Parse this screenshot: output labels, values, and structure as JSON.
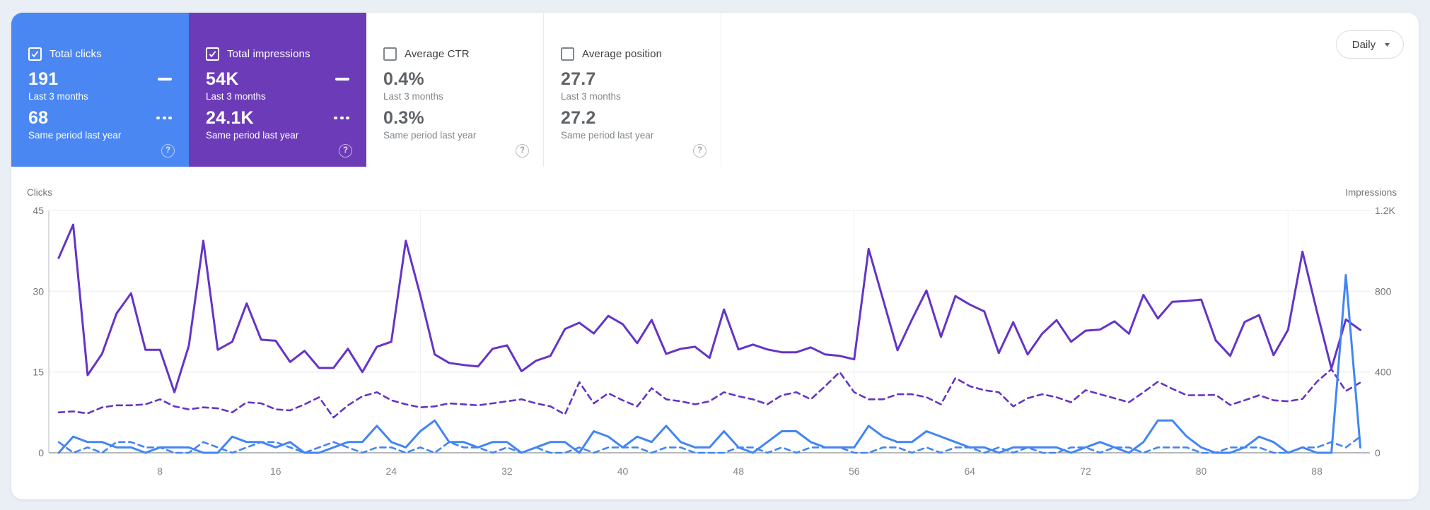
{
  "colors": {
    "page_background": "#eaeef5",
    "clicks_accent": "#4b87f2",
    "impressions_accent": "#6c3cb8",
    "clicks_line": "#4285f4",
    "impressions_line": "#6434c8"
  },
  "icons": {
    "help": "?",
    "caret": "▼"
  },
  "granularity": {
    "label": "Daily"
  },
  "cards": [
    {
      "label": "Total clicks",
      "checked": true,
      "current_value": "191",
      "current_period": "Last 3 months",
      "previous_value": "68",
      "previous_period": "Same period last year"
    },
    {
      "label": "Total impressions",
      "checked": true,
      "current_value": "54K",
      "current_period": "Last 3 months",
      "previous_value": "24.1K",
      "previous_period": "Same period last year"
    },
    {
      "label": "Average CTR",
      "checked": false,
      "current_value": "0.4%",
      "current_period": "Last 3 months",
      "previous_value": "0.3%",
      "previous_period": "Same period last year"
    },
    {
      "label": "Average position",
      "checked": false,
      "current_value": "27.7",
      "current_period": "Last 3 months",
      "previous_value": "27.2",
      "previous_period": "Same period last year"
    }
  ],
  "chart_data": {
    "type": "line",
    "x_unit": "day",
    "x_range": [
      1,
      91
    ],
    "x_ticks": [
      8,
      16,
      24,
      32,
      40,
      48,
      56,
      64,
      72,
      80,
      88
    ],
    "month_gridlines": [
      26,
      56,
      86
    ],
    "left_axis": {
      "label": "Clicks",
      "max": 45,
      "ticks": [
        {
          "label": "45",
          "value": 45
        },
        {
          "label": "30",
          "value": 30
        },
        {
          "label": "15",
          "value": 15
        },
        {
          "label": "0",
          "value": 0
        }
      ]
    },
    "right_axis": {
      "label": "Impressions",
      "max": 1200,
      "ticks": [
        {
          "label": "1.2K",
          "value": 1200
        },
        {
          "label": "800",
          "value": 800
        },
        {
          "label": "400",
          "value": 400
        },
        {
          "label": "0",
          "value": 0
        }
      ]
    },
    "series": [
      {
        "name": "Total impressions — same period last year",
        "axis": "right",
        "color": "#6434c8",
        "style": "dashed",
        "values": [
          200,
          205,
          195,
          225,
          235,
          235,
          240,
          265,
          230,
          215,
          225,
          220,
          200,
          250,
          245,
          215,
          210,
          240,
          275,
          175,
          235,
          280,
          300,
          260,
          240,
          225,
          230,
          245,
          240,
          235,
          245,
          255,
          265,
          245,
          230,
          190,
          350,
          245,
          295,
          260,
          230,
          320,
          265,
          255,
          240,
          255,
          300,
          280,
          265,
          240,
          285,
          300,
          265,
          330,
          400,
          300,
          265,
          265,
          290,
          290,
          275,
          240,
          370,
          330,
          310,
          300,
          230,
          270,
          290,
          275,
          250,
          310,
          290,
          270,
          250,
          300,
          352,
          317,
          285,
          285,
          287,
          237,
          260,
          285,
          260,
          255,
          267,
          352,
          414,
          306,
          348
        ]
      },
      {
        "name": "Total impressions — last 3 months",
        "axis": "right",
        "color": "#6434c8",
        "style": "solid",
        "values": [
          965,
          1130,
          385,
          490,
          690,
          790,
          510,
          510,
          300,
          530,
          1050,
          510,
          550,
          740,
          560,
          555,
          450,
          505,
          420,
          420,
          515,
          400,
          525,
          550,
          1050,
          780,
          487,
          445,
          435,
          428,
          515,
          532,
          404,
          456,
          480,
          613,
          644,
          591,
          678,
          637,
          543,
          658,
          490,
          515,
          525,
          470,
          710,
          512,
          536,
          512,
          498,
          498,
          522,
          487,
          480,
          463,
          1010,
          760,
          508,
          660,
          804,
          574,
          776,
          734,
          700,
          494,
          647,
          487,
          590,
          657,
          550,
          605,
          610,
          651,
          590,
          782,
          665,
          748,
          752,
          759,
          557,
          480,
          648,
          682,
          484,
          609,
          996,
          700,
          417,
          660,
          608
        ]
      },
      {
        "name": "Total clicks — same period last year",
        "axis": "left",
        "color": "#4285f4",
        "style": "dashed",
        "values": [
          2,
          0,
          1,
          0,
          2,
          2,
          1,
          1,
          0,
          0,
          2,
          1,
          0,
          1,
          2,
          2,
          1,
          0,
          1,
          2,
          1,
          0,
          1,
          1,
          0,
          1,
          0,
          2,
          1,
          1,
          0,
          1,
          0,
          1,
          0,
          0,
          1,
          0,
          1,
          1,
          1,
          0,
          1,
          1,
          0,
          0,
          0,
          1,
          1,
          0,
          1,
          0,
          1,
          1,
          1,
          0,
          0,
          1,
          1,
          0,
          1,
          0,
          1,
          1,
          0,
          1,
          0,
          1,
          0,
          0,
          1,
          1,
          0,
          1,
          1,
          0,
          1,
          1,
          1,
          0,
          0,
          1,
          1,
          1,
          0,
          0,
          1,
          1,
          2,
          1,
          3
        ]
      },
      {
        "name": "Total clicks — last 3 months",
        "axis": "left",
        "color": "#4285f4",
        "style": "solid",
        "values": [
          0,
          3,
          2,
          2,
          1,
          1,
          0,
          1,
          1,
          1,
          0,
          0,
          3,
          2,
          2,
          1,
          2,
          0,
          0,
          1,
          2,
          2,
          5,
          2,
          1,
          4,
          6,
          2,
          2,
          1,
          2,
          2,
          0,
          1,
          2,
          2,
          0,
          4,
          3,
          1,
          3,
          2,
          5,
          2,
          1,
          1,
          4,
          1,
          0,
          2,
          4,
          4,
          2,
          1,
          1,
          1,
          5,
          3,
          2,
          2,
          4,
          3,
          2,
          1,
          1,
          0,
          1,
          1,
          1,
          1,
          0,
          1,
          2,
          1,
          0,
          2,
          6,
          6,
          3,
          1,
          0,
          0,
          1,
          3,
          2,
          0,
          1,
          0,
          0,
          33,
          1
        ]
      }
    ]
  }
}
